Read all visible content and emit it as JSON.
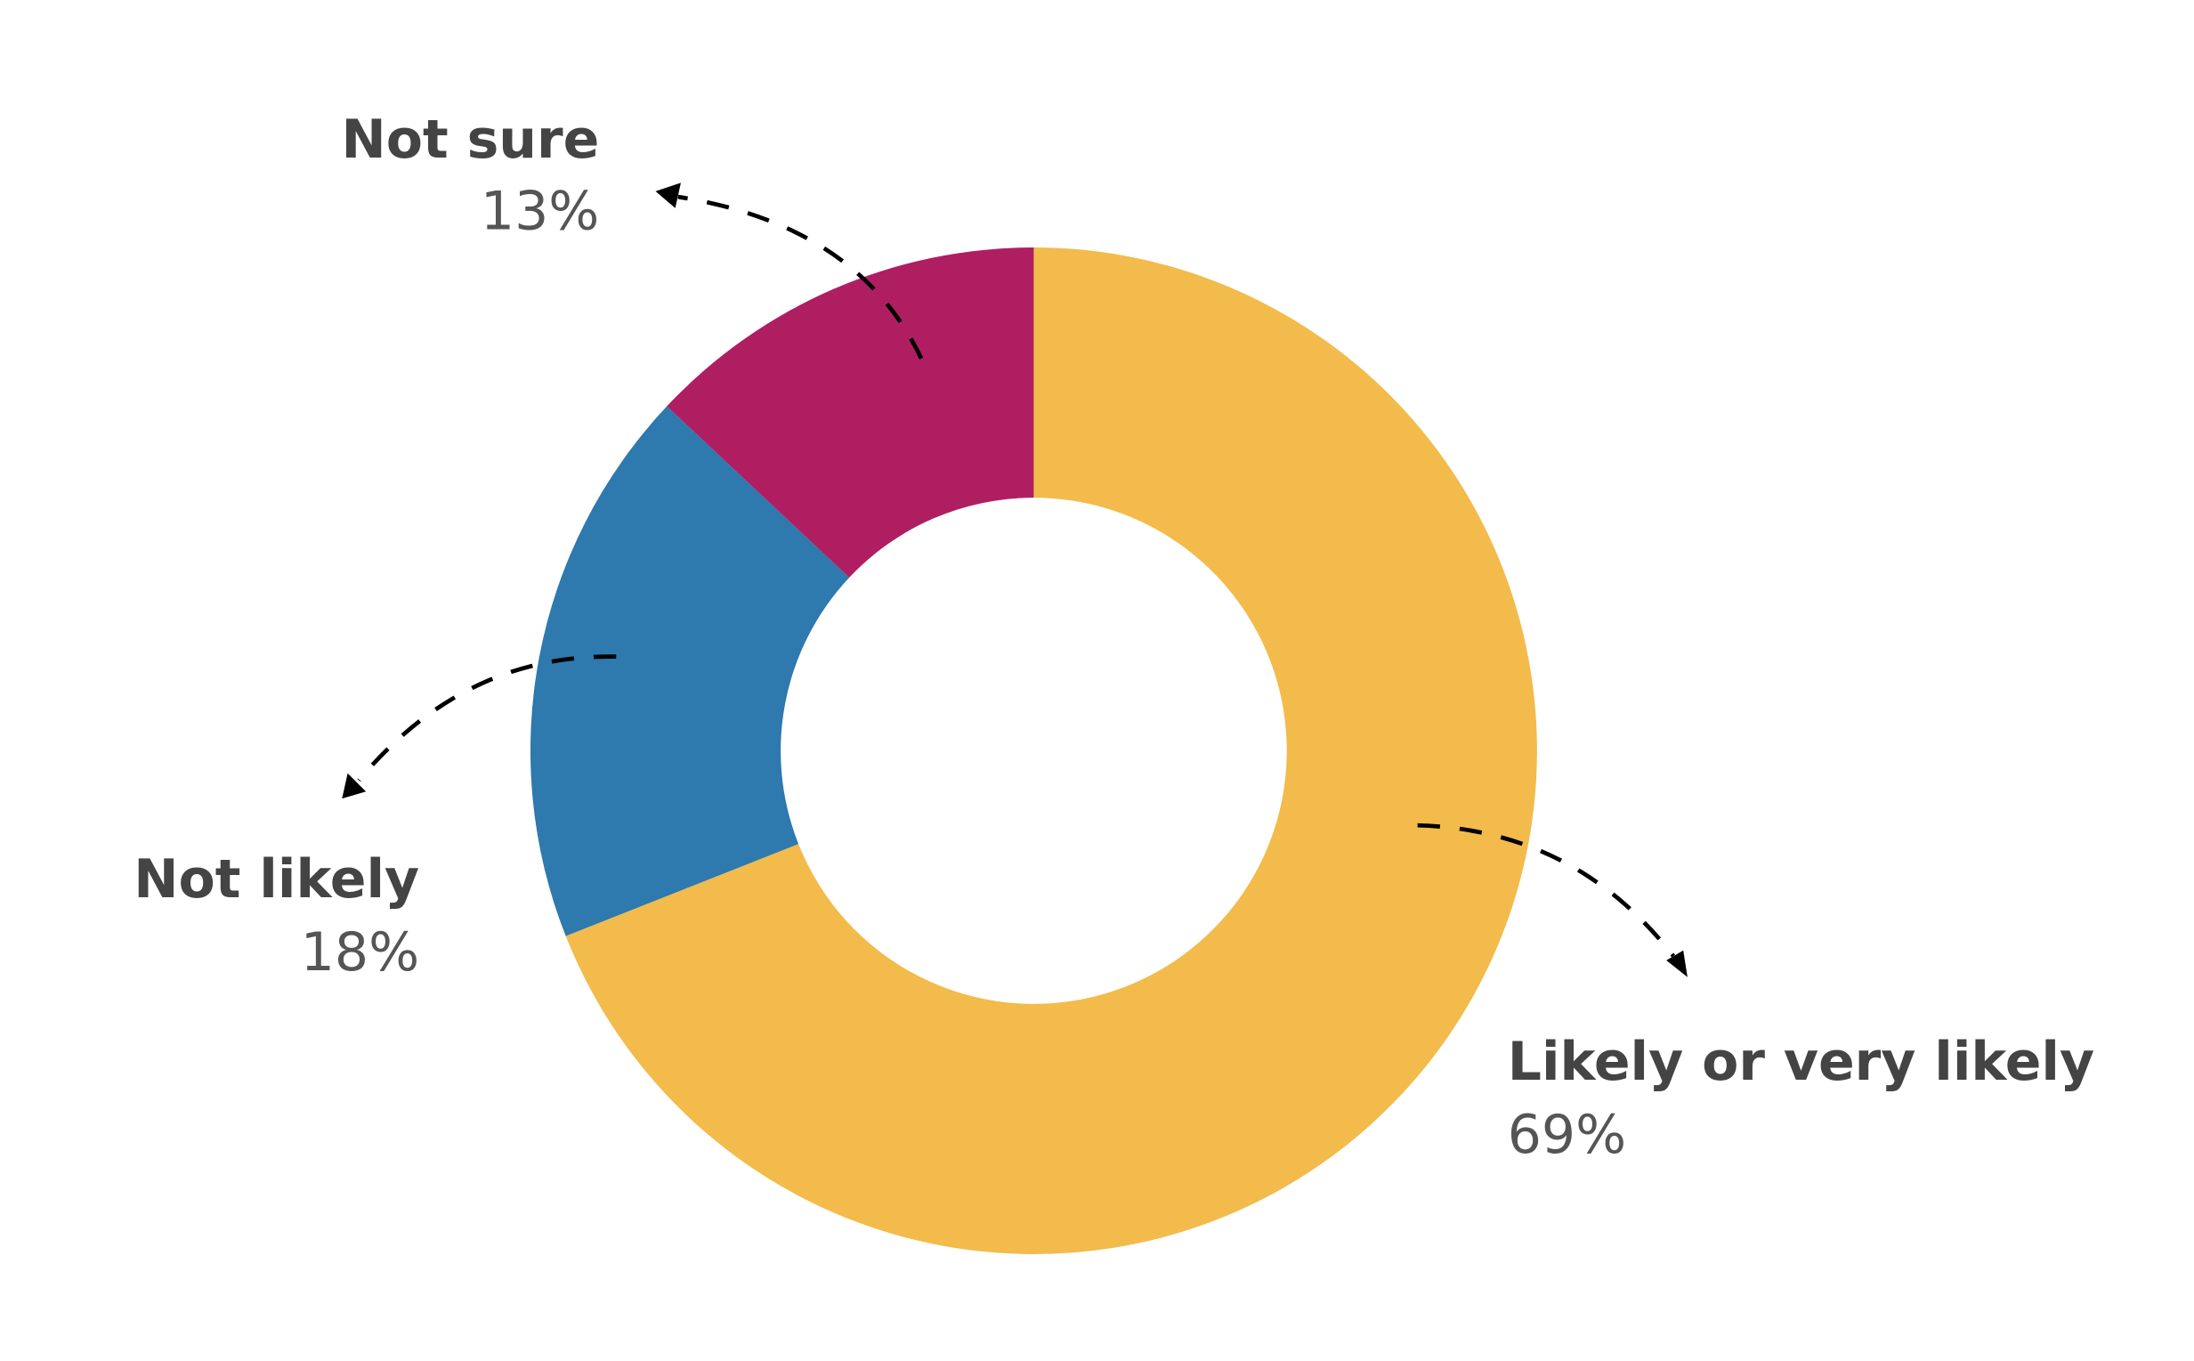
{
  "chart_data": {
    "type": "pie",
    "donut": true,
    "start": "top, clockwise",
    "slices": [
      {
        "label": "Likely or very likely",
        "value": 69,
        "display": "69%",
        "color": "#F2BB4B"
      },
      {
        "label": "Not likely",
        "value": 18,
        "display": "18%",
        "color": "#2E79AE"
      },
      {
        "label": "Not sure",
        "value": 13,
        "display": "13%",
        "color": "#B01E62"
      }
    ],
    "legend": "none",
    "labels": "outside with dashed arrows"
  }
}
